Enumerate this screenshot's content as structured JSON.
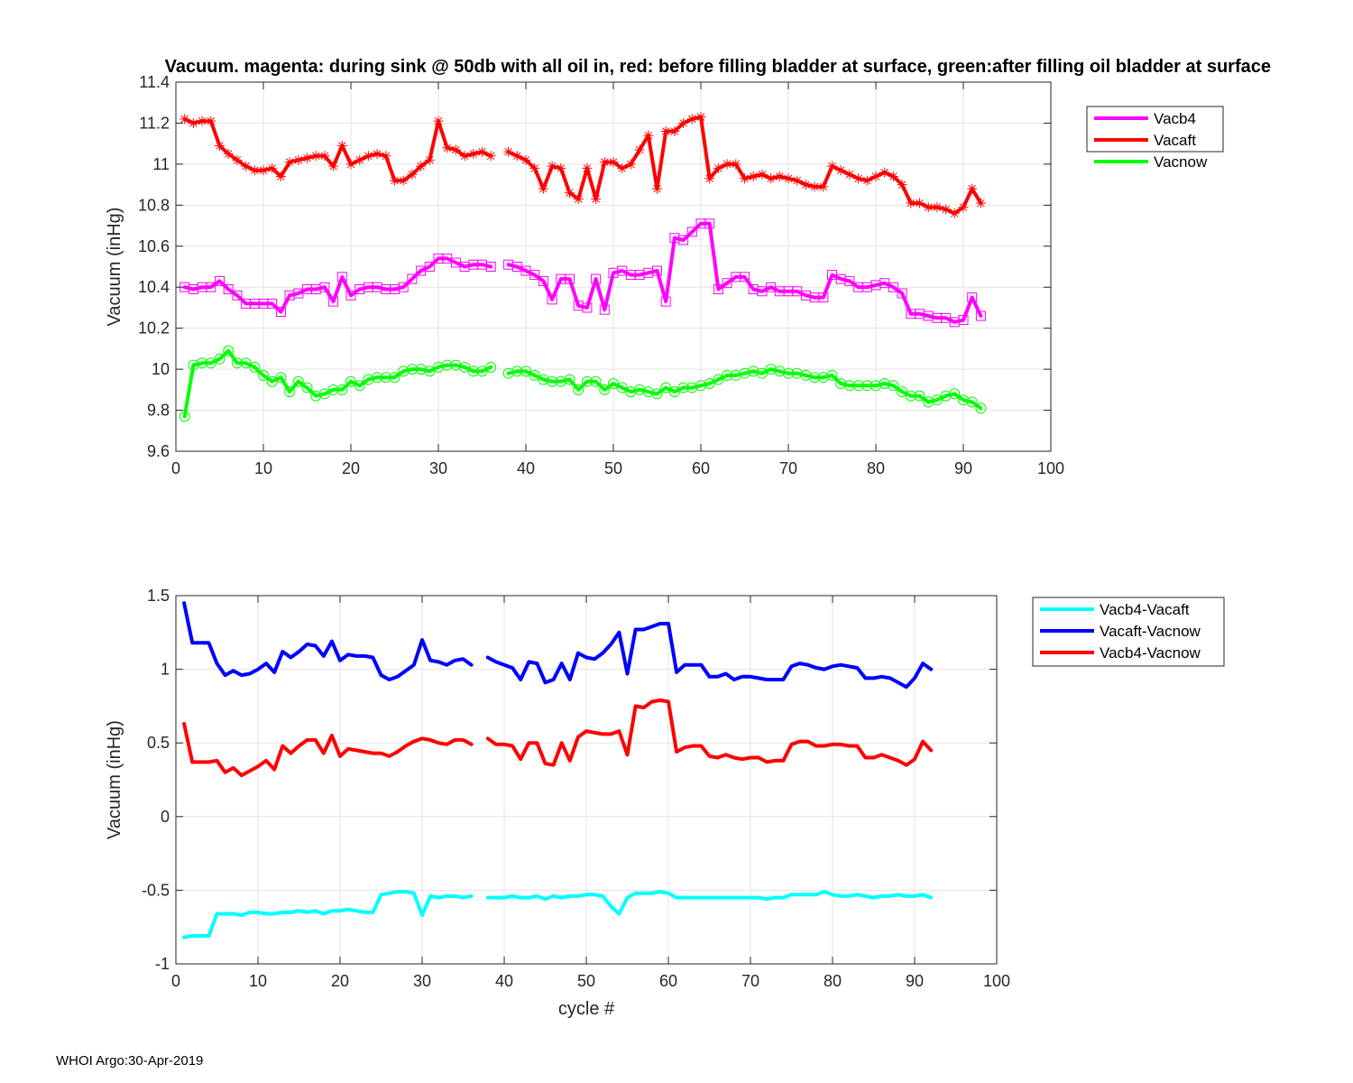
{
  "footer": "WHOI Argo:30-Apr-2019",
  "chart_data": [
    {
      "type": "line",
      "title": "Vacuum. magenta: during sink @ 50db with all oil in, red: before filling bladder at surface, green:after filling oil bladder at surface",
      "xlabel": "",
      "ylabel": "Vacuum (inHg)",
      "xlim": [
        0,
        100
      ],
      "ylim": [
        9.6,
        11.4
      ],
      "xticks": [
        0,
        10,
        20,
        30,
        40,
        50,
        60,
        70,
        80,
        90,
        100
      ],
      "yticks": [
        9.6,
        9.8,
        10,
        10.2,
        10.4,
        10.6,
        10.8,
        11,
        11.2,
        11.4
      ],
      "xtick_labels": [
        "0",
        "10",
        "20",
        "30",
        "40",
        "50",
        "60",
        "70",
        "80",
        "90",
        "100"
      ],
      "ytick_labels": [
        "9.6",
        "9.8",
        "10",
        "10.2",
        "10.4",
        "10.6",
        "10.8",
        "11",
        "11.2",
        "11.4"
      ],
      "grid": true,
      "legend_position": "outside-top-right",
      "x": [
        1,
        2,
        3,
        4,
        5,
        6,
        7,
        8,
        9,
        10,
        11,
        12,
        13,
        14,
        15,
        16,
        17,
        18,
        19,
        20,
        21,
        22,
        23,
        24,
        25,
        26,
        27,
        28,
        29,
        30,
        31,
        32,
        33,
        34,
        35,
        36,
        37,
        38,
        39,
        40,
        41,
        42,
        43,
        44,
        45,
        46,
        47,
        48,
        49,
        50,
        51,
        52,
        53,
        54,
        55,
        56,
        57,
        58,
        59,
        60,
        61,
        62,
        63,
        64,
        65,
        66,
        67,
        68,
        69,
        70,
        71,
        72,
        73,
        74,
        75,
        76,
        77,
        78,
        79,
        80,
        81,
        82,
        83,
        84,
        85,
        86,
        87,
        88,
        89,
        90,
        91,
        92
      ],
      "series": [
        {
          "name": "Vacb4",
          "color": "#ff00ff",
          "marker": "square",
          "values": [
            10.4,
            10.39,
            10.4,
            10.4,
            10.43,
            10.39,
            10.36,
            10.32,
            10.32,
            10.32,
            10.32,
            10.28,
            10.36,
            10.37,
            10.39,
            10.39,
            10.4,
            10.33,
            10.45,
            10.36,
            10.39,
            10.4,
            10.4,
            10.39,
            10.39,
            10.4,
            10.44,
            10.48,
            10.5,
            10.54,
            10.54,
            10.52,
            10.5,
            10.51,
            10.51,
            10.5,
            null,
            10.51,
            10.5,
            10.48,
            10.46,
            10.43,
            10.34,
            10.44,
            10.44,
            10.31,
            10.3,
            10.44,
            10.29,
            10.47,
            10.48,
            10.46,
            10.46,
            10.47,
            10.48,
            10.33,
            10.64,
            10.63,
            10.67,
            10.71,
            10.71,
            10.39,
            10.42,
            10.45,
            10.45,
            10.39,
            10.38,
            10.4,
            10.38,
            10.38,
            10.38,
            10.36,
            10.35,
            10.35,
            10.46,
            10.44,
            10.43,
            10.4,
            10.4,
            10.41,
            10.42,
            10.4,
            10.37,
            10.27,
            10.27,
            10.26,
            10.25,
            10.25,
            10.23,
            10.24,
            10.35,
            10.26
          ]
        },
        {
          "name": "Vacaft",
          "color": "#ff0000",
          "marker": "star",
          "values": [
            11.22,
            11.2,
            11.21,
            11.21,
            11.09,
            11.05,
            11.02,
            10.99,
            10.97,
            10.97,
            10.98,
            10.94,
            11.01,
            11.02,
            11.03,
            11.04,
            11.04,
            10.99,
            11.09,
            11.0,
            11.02,
            11.04,
            11.05,
            11.04,
            10.92,
            10.92,
            10.95,
            10.99,
            11.02,
            11.21,
            11.08,
            11.07,
            11.04,
            11.05,
            11.06,
            11.04,
            null,
            11.06,
            11.04,
            11.02,
            10.98,
            10.88,
            10.99,
            10.98,
            10.86,
            10.83,
            10.98,
            10.83,
            11.01,
            11.01,
            10.98,
            11.0,
            11.07,
            11.14,
            10.88,
            11.16,
            11.16,
            11.2,
            11.22,
            11.23,
            10.93,
            10.98,
            11.0,
            11.0,
            10.93,
            10.94,
            10.95,
            10.93,
            10.94,
            10.93,
            10.92,
            10.9,
            10.89,
            10.89,
            10.99,
            10.97,
            10.95,
            10.93,
            10.92,
            10.94,
            10.96,
            10.94,
            10.9,
            10.81,
            10.81,
            10.79,
            10.79,
            10.78,
            10.76,
            10.79,
            10.88,
            10.81
          ]
        },
        {
          "name": "Vacnow",
          "color": "#00ff00",
          "marker": "circle",
          "values": [
            9.77,
            10.02,
            10.03,
            10.03,
            10.05,
            10.09,
            10.03,
            10.03,
            10.01,
            9.97,
            9.94,
            9.96,
            9.89,
            9.94,
            9.91,
            9.87,
            9.88,
            9.9,
            9.9,
            9.94,
            9.92,
            9.95,
            9.96,
            9.96,
            9.96,
            9.99,
            10.0,
            10.0,
            9.99,
            10.01,
            10.02,
            10.02,
            10.01,
            9.99,
            9.99,
            10.01,
            null,
            9.98,
            9.99,
            9.99,
            9.97,
            9.95,
            9.94,
            9.94,
            9.95,
            9.9,
            9.94,
            9.94,
            9.9,
            9.93,
            9.91,
            9.89,
            9.9,
            9.89,
            9.88,
            9.91,
            9.89,
            9.91,
            9.91,
            9.92,
            9.93,
            9.95,
            9.97,
            9.97,
            9.98,
            9.99,
            9.98,
            10.0,
            9.99,
            9.98,
            9.98,
            9.97,
            9.96,
            9.96,
            9.97,
            9.93,
            9.92,
            9.92,
            9.92,
            9.92,
            9.93,
            9.92,
            9.89,
            9.87,
            9.87,
            9.84,
            9.85,
            9.87,
            9.88,
            9.85,
            9.84,
            9.81
          ]
        }
      ]
    },
    {
      "type": "line",
      "title": "",
      "xlabel": "cycle #",
      "ylabel": "Vacuum (inHg)",
      "xlim": [
        0,
        100
      ],
      "ylim": [
        -1,
        1.5
      ],
      "xticks": [
        0,
        10,
        20,
        30,
        40,
        50,
        60,
        70,
        80,
        90,
        100
      ],
      "yticks": [
        -1,
        -0.5,
        0,
        0.5,
        1,
        1.5
      ],
      "xtick_labels": [
        "0",
        "10",
        "20",
        "30",
        "40",
        "50",
        "60",
        "70",
        "80",
        "90",
        "100"
      ],
      "ytick_labels": [
        "-1",
        "-0.5",
        "0",
        "0.5",
        "1",
        "1.5"
      ],
      "grid": true,
      "legend_position": "outside-top-right",
      "x": [
        1,
        2,
        3,
        4,
        5,
        6,
        7,
        8,
        9,
        10,
        11,
        12,
        13,
        14,
        15,
        16,
        17,
        18,
        19,
        20,
        21,
        22,
        23,
        24,
        25,
        26,
        27,
        28,
        29,
        30,
        31,
        32,
        33,
        34,
        35,
        36,
        37,
        38,
        39,
        40,
        41,
        42,
        43,
        44,
        45,
        46,
        47,
        48,
        49,
        50,
        51,
        52,
        53,
        54,
        55,
        56,
        57,
        58,
        59,
        60,
        61,
        62,
        63,
        64,
        65,
        66,
        67,
        68,
        69,
        70,
        71,
        72,
        73,
        74,
        75,
        76,
        77,
        78,
        79,
        80,
        81,
        82,
        83,
        84,
        85,
        86,
        87,
        88,
        89,
        90,
        91,
        92
      ],
      "series": [
        {
          "name": "Vacb4-Vacaft",
          "color": "#00ffff",
          "values": [
            -0.82,
            -0.81,
            -0.81,
            -0.81,
            -0.66,
            -0.66,
            -0.66,
            -0.67,
            -0.65,
            -0.65,
            -0.66,
            -0.66,
            -0.65,
            -0.65,
            -0.64,
            -0.65,
            -0.64,
            -0.66,
            -0.64,
            -0.64,
            -0.63,
            -0.64,
            -0.65,
            -0.65,
            -0.53,
            -0.52,
            -0.51,
            -0.51,
            -0.52,
            -0.67,
            -0.54,
            -0.55,
            -0.54,
            -0.54,
            -0.55,
            -0.54,
            null,
            -0.55,
            -0.55,
            -0.55,
            -0.54,
            -0.55,
            -0.55,
            -0.54,
            -0.56,
            -0.54,
            -0.55,
            -0.54,
            -0.54,
            -0.53,
            -0.53,
            -0.54,
            -0.61,
            -0.66,
            -0.55,
            -0.52,
            -0.52,
            -0.52,
            -0.51,
            -0.52,
            -0.55,
            -0.55,
            -0.55,
            -0.55,
            -0.55,
            -0.55,
            -0.55,
            -0.55,
            -0.55,
            -0.55,
            -0.55,
            -0.56,
            -0.55,
            -0.55,
            -0.53,
            -0.53,
            -0.53,
            -0.53,
            -0.51,
            -0.53,
            -0.54,
            -0.54,
            -0.53,
            -0.54,
            -0.55,
            -0.54,
            -0.54,
            -0.53,
            -0.54,
            -0.54,
            -0.53,
            -0.55
          ]
        },
        {
          "name": "Vacaft-Vacnow",
          "color": "#0000ff",
          "values": [
            1.45,
            1.18,
            1.18,
            1.18,
            1.04,
            0.96,
            0.99,
            0.96,
            0.97,
            1.0,
            1.04,
            0.98,
            1.12,
            1.08,
            1.12,
            1.17,
            1.16,
            1.09,
            1.19,
            1.06,
            1.1,
            1.09,
            1.09,
            1.08,
            0.96,
            0.93,
            0.95,
            0.99,
            1.03,
            1.2,
            1.06,
            1.05,
            1.03,
            1.06,
            1.07,
            1.03,
            null,
            1.08,
            1.05,
            1.03,
            1.01,
            0.93,
            1.05,
            1.04,
            0.91,
            0.93,
            1.04,
            0.93,
            1.11,
            1.08,
            1.07,
            1.11,
            1.17,
            1.25,
            0.97,
            1.27,
            1.27,
            1.29,
            1.31,
            1.31,
            0.98,
            1.03,
            1.03,
            1.03,
            0.95,
            0.95,
            0.97,
            0.93,
            0.95,
            0.95,
            0.94,
            0.93,
            0.93,
            0.93,
            1.02,
            1.04,
            1.03,
            1.01,
            1.0,
            1.02,
            1.03,
            1.02,
            1.01,
            0.94,
            0.94,
            0.95,
            0.94,
            0.91,
            0.88,
            0.94,
            1.04,
            1.0
          ]
        },
        {
          "name": "Vacb4-Vacnow",
          "color": "#ff0000",
          "values": [
            0.63,
            0.37,
            0.37,
            0.37,
            0.38,
            0.3,
            0.33,
            0.28,
            0.31,
            0.34,
            0.38,
            0.32,
            0.48,
            0.43,
            0.48,
            0.52,
            0.52,
            0.43,
            0.55,
            0.41,
            0.46,
            0.45,
            0.44,
            0.43,
            0.43,
            0.41,
            0.44,
            0.48,
            0.51,
            0.53,
            0.52,
            0.5,
            0.49,
            0.52,
            0.52,
            0.49,
            null,
            0.53,
            0.49,
            0.49,
            0.48,
            0.39,
            0.5,
            0.5,
            0.36,
            0.35,
            0.5,
            0.38,
            0.54,
            0.58,
            0.57,
            0.56,
            0.56,
            0.58,
            0.42,
            0.75,
            0.74,
            0.78,
            0.79,
            0.78,
            0.44,
            0.47,
            0.48,
            0.48,
            0.41,
            0.4,
            0.42,
            0.4,
            0.39,
            0.4,
            0.4,
            0.37,
            0.38,
            0.38,
            0.49,
            0.51,
            0.51,
            0.48,
            0.48,
            0.49,
            0.49,
            0.48,
            0.48,
            0.4,
            0.4,
            0.42,
            0.4,
            0.38,
            0.35,
            0.39,
            0.51,
            0.45
          ]
        }
      ]
    }
  ]
}
